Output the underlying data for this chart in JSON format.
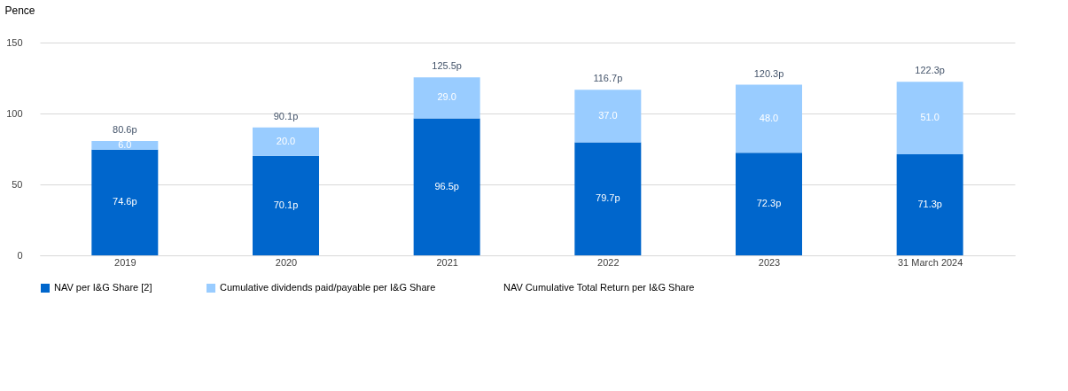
{
  "chart_data": {
    "type": "bar",
    "stacked": true,
    "ylabel": "Pence",
    "categories": [
      "2019",
      "2020",
      "2021",
      "2022",
      "2023",
      "31 March 2024"
    ],
    "ylim": [
      0,
      150
    ],
    "yticks": [
      0,
      50,
      100,
      150
    ],
    "grid": "y",
    "legend": "bottom",
    "series": [
      {
        "name": "NAV per I&G Share [2]",
        "color": "#0066cc",
        "values": [
          74.6,
          70.1,
          96.5,
          79.7,
          72.3,
          71.3
        ],
        "value_labels": [
          "74.6p",
          "70.1p",
          "96.5p",
          "79.7p",
          "72.3p",
          "71.3p"
        ]
      },
      {
        "name": "Cumulative dividends paid/payable per I&G Share",
        "color": "#99ccff",
        "values": [
          6.0,
          20.0,
          29.0,
          37.0,
          48.0,
          51.0
        ],
        "value_labels": [
          "6.0",
          "20.0",
          "29.0",
          "37.0",
          "48.0",
          "51.0"
        ]
      },
      {
        "name": "NAV Cumulative Total Return per I&G Share",
        "values": [
          null,
          null,
          null,
          null,
          null,
          null
        ]
      }
    ],
    "totals": [
      "80.6p",
      "90.1p",
      "125.5p",
      "116.7p",
      "120.3p",
      "122.3p"
    ]
  }
}
